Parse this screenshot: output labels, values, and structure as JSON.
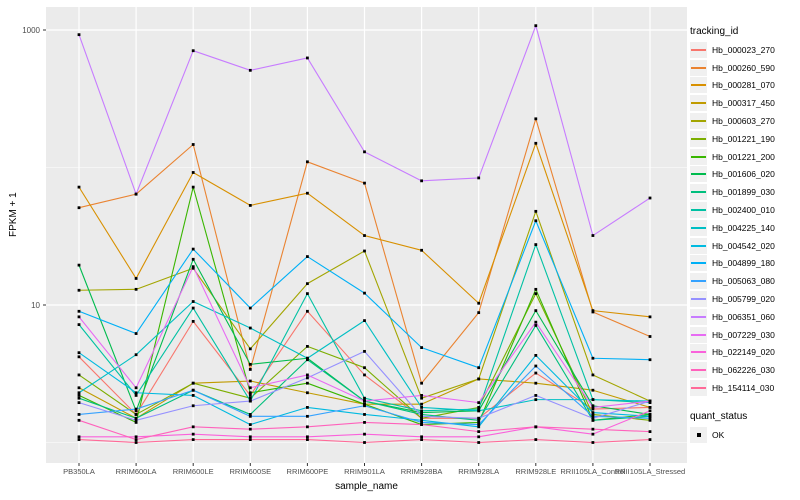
{
  "chart_data": {
    "type": "line",
    "title": "",
    "xlabel": "sample_name",
    "ylabel": "FPKM + 1",
    "y_scale": "log10",
    "ylim": [
      0.66,
      1400
    ],
    "grid": true,
    "panel_bg": "#EBEBEB",
    "grid_color": "#FFFFFF",
    "tick_color": "#333333",
    "tick_label_color": "#4D4D4D",
    "point_color": "#000000",
    "y_ticks": [
      {
        "label": "1000",
        "value": 1000
      },
      {
        "label": "10",
        "value": 10
      }
    ],
    "y_grid_major_values": [
      10,
      1000
    ],
    "y_grid_minor_values": [
      1,
      100
    ],
    "legend_position": "right",
    "categories": [
      "PB350LA",
      "RRIM600LA",
      "RRIM600LE",
      "RRIM600SE",
      "RRIM600PE",
      "RRIM901LA",
      "RRIM928BA",
      "RRIM928LA",
      "RRIM928LE",
      "RRII105LA_Control",
      "RRII105LA_Stressed"
    ],
    "series": [
      {
        "name": "Hb_000023_270",
        "color": "#F8766D",
        "values": [
          4.2,
          1.6,
          7.6,
          2.2,
          9.0,
          3.1,
          1.5,
          1.5,
          3.2,
          1.75,
          1.8
        ]
      },
      {
        "name": "Hb_000260_590",
        "color": "#EA8331",
        "values": [
          51,
          64,
          147,
          3.4,
          110,
          77,
          2.7,
          8.8,
          226,
          8.9,
          5.9
        ]
      },
      {
        "name": "Hb_000281_070",
        "color": "#D89000",
        "values": [
          72,
          15.6,
          92,
          53,
          65,
          32,
          25,
          10.3,
          150,
          9.1,
          8.2
        ]
      },
      {
        "name": "Hb_000317_450",
        "color": "#C09B00",
        "values": [
          2.5,
          1.5,
          2.7,
          2.8,
          2.3,
          1.9,
          1.9,
          2.9,
          2.7,
          2.4,
          1.8
        ]
      },
      {
        "name": "Hb_000603_270",
        "color": "#A3A500",
        "values": [
          12.8,
          13.0,
          18.5,
          4.8,
          14.3,
          24.7,
          2.1,
          2.9,
          48,
          3.1,
          2.0
        ]
      },
      {
        "name": "Hb_001221_190",
        "color": "#7CAE00",
        "values": [
          3.1,
          1.6,
          2.7,
          2.1,
          5.0,
          3.5,
          1.5,
          1.8,
          12.1,
          1.6,
          1.45
        ]
      },
      {
        "name": "Hb_001221_200",
        "color": "#39B600",
        "values": [
          2.2,
          1.4,
          72,
          2.3,
          2.7,
          1.9,
          1.35,
          1.4,
          13.0,
          1.45,
          1.6
        ]
      },
      {
        "name": "Hb_001606_020",
        "color": "#00BB4E",
        "values": [
          19.5,
          1.7,
          21.5,
          3.7,
          4.1,
          2.0,
          1.65,
          1.7,
          9.1,
          1.85,
          1.6
        ]
      },
      {
        "name": "Hb_001899_030",
        "color": "#00BF7D",
        "values": [
          2.1,
          1.5,
          2.4,
          1.6,
          4.0,
          2.0,
          1.6,
          1.45,
          7.1,
          1.45,
          1.55
        ]
      },
      {
        "name": "Hb_002400_010",
        "color": "#00C1A3",
        "values": [
          7.2,
          2.2,
          9.5,
          2.0,
          12.1,
          2.1,
          1.7,
          1.75,
          27.5,
          2.05,
          1.95
        ]
      },
      {
        "name": "Hb_004225_140",
        "color": "#00BFC4",
        "values": [
          2.3,
          4.35,
          10.6,
          6.8,
          4.1,
          7.7,
          1.8,
          1.7,
          2.05,
          2.05,
          2.0
        ]
      },
      {
        "name": "Hb_004542_020",
        "color": "#00BAE0",
        "values": [
          4.5,
          2.3,
          2.2,
          1.35,
          1.8,
          1.6,
          1.45,
          1.3,
          4.3,
          1.65,
          1.55
        ]
      },
      {
        "name": "Hb_004899_180",
        "color": "#00B0F6",
        "values": [
          9.0,
          6.2,
          25.5,
          9.5,
          22.5,
          12.2,
          4.9,
          3.5,
          41,
          4.1,
          4.0
        ]
      },
      {
        "name": "Hb_005063_080",
        "color": "#35A2FF",
        "values": [
          1.6,
          1.75,
          2.4,
          1.55,
          1.55,
          1.85,
          1.4,
          1.35,
          3.6,
          1.55,
          1.5
        ]
      },
      {
        "name": "Hb_005799_020",
        "color": "#9590FF",
        "values": [
          1.95,
          1.45,
          1.85,
          2.0,
          2.95,
          4.6,
          1.55,
          1.5,
          2.2,
          1.5,
          2.0
        ]
      },
      {
        "name": "Hb_006351_060",
        "color": "#C77CFF",
        "values": [
          925,
          64,
          707,
          509,
          626,
          130,
          80,
          84,
          1075,
          32,
          60
        ]
      },
      {
        "name": "Hb_007229_030",
        "color": "#E76BF3",
        "values": [
          8.2,
          2.5,
          19,
          2.5,
          3.1,
          2.0,
          2.2,
          1.95,
          7.5,
          1.8,
          2.0
        ]
      },
      {
        "name": "Hb_022149_020",
        "color": "#FA62DB",
        "values": [
          1.1,
          1.1,
          1.15,
          1.1,
          1.1,
          1.15,
          1.1,
          1.1,
          1.3,
          1.15,
          1.7
        ]
      },
      {
        "name": "Hb_062226_030",
        "color": "#FF62BC",
        "values": [
          1.45,
          1.05,
          1.3,
          1.25,
          1.3,
          1.4,
          1.35,
          1.2,
          1.3,
          1.25,
          1.2
        ]
      },
      {
        "name": "Hb_154114_030",
        "color": "#FF6A98",
        "values": [
          1.05,
          1.0,
          1.05,
          1.05,
          1.05,
          1.0,
          1.05,
          1.0,
          1.05,
          1.0,
          1.05
        ]
      }
    ]
  },
  "legend": {
    "tracking_title": "tracking_id",
    "quant_title": "quant_status",
    "quant_ok_label": "OK"
  }
}
